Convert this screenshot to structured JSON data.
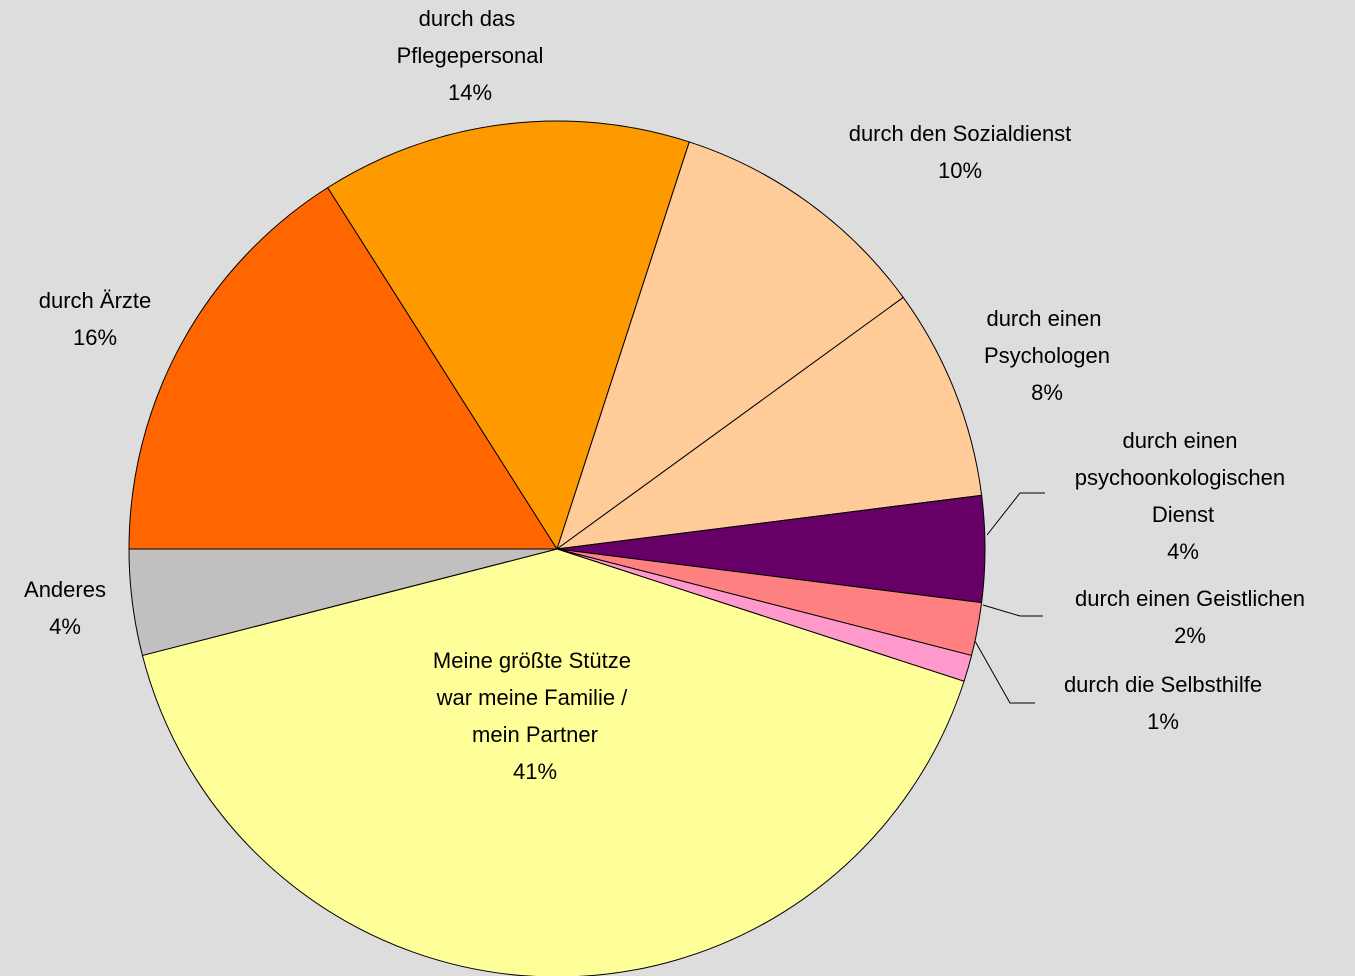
{
  "chart_data": {
    "type": "pie",
    "categories": [
      "durch Ärzte",
      "durch das\nPflegepersonal",
      "durch den Sozialdienst",
      "durch einen\nPsychologen",
      "durch einen\npsychoonkologischen\nDienst",
      "durch einen Geistlichen",
      "durch die Selbsthilfe",
      "Meine größte Stütze\nwar meine Familie /\nmein Partner",
      "Anderes"
    ],
    "values": [
      16,
      14,
      10,
      8,
      4,
      2,
      1,
      41,
      4
    ],
    "value_labels": [
      "16%",
      "14%",
      "10%",
      "8%",
      "4%",
      "2%",
      "1%",
      "41%",
      "4%"
    ],
    "colors": [
      "#ff6600",
      "#ff9900",
      "#ffcc99",
      "#ffcc99",
      "#660066",
      "#ff8080",
      "#ff99cc",
      "#ffff99",
      "#c0c0c0"
    ]
  }
}
